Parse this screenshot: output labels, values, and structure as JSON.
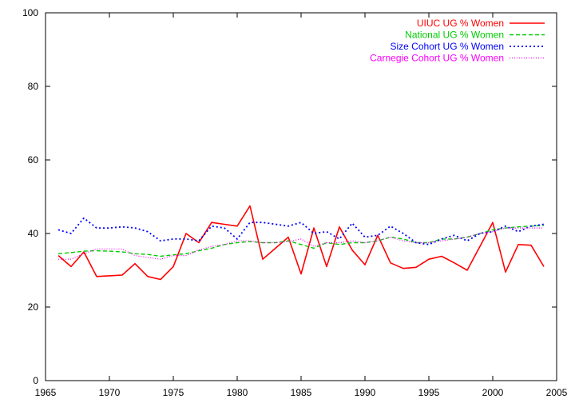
{
  "chart_data": {
    "type": "line",
    "xlim": [
      1965,
      2005
    ],
    "ylim": [
      0,
      100
    ],
    "xticks": [
      1965,
      1970,
      1975,
      1980,
      1985,
      1990,
      1995,
      2000,
      2005
    ],
    "yticks": [
      0,
      20,
      40,
      60,
      80,
      100
    ],
    "grid": false,
    "legend_position": "top-right",
    "x": [
      1966,
      1967,
      1968,
      1969,
      1970,
      1971,
      1972,
      1973,
      1974,
      1975,
      1976,
      1977,
      1978,
      1979,
      1980,
      1981,
      1982,
      1983,
      1984,
      1985,
      1986,
      1987,
      1988,
      1989,
      1990,
      1991,
      1992,
      1993,
      1994,
      1995,
      1996,
      1997,
      1998,
      1999,
      2000,
      2001,
      2002,
      2003,
      2004
    ],
    "series": [
      {
        "name": "UIUC UG % Women",
        "color": "#ff0000",
        "dash": "solid",
        "values": [
          34,
          31,
          35,
          28.3,
          28.5,
          28.7,
          31.8,
          28.3,
          27.5,
          31,
          40,
          37.5,
          43,
          42.5,
          42,
          47.5,
          33,
          36,
          39,
          29,
          41.5,
          31,
          41.8,
          35.5,
          31.5,
          39.5,
          32,
          30.5,
          30.8,
          33,
          33.8,
          32,
          30,
          36.5,
          43,
          29.5,
          37,
          36.8,
          31
        ]
      },
      {
        "name": "National UG % Women",
        "color": "#00cc00",
        "dash": "dashed",
        "values": [
          34.5,
          34.8,
          35.2,
          35.3,
          35.2,
          35,
          34.5,
          34.3,
          33.8,
          34.2,
          34.5,
          35.3,
          36,
          37,
          37.5,
          37.8,
          37.5,
          37.5,
          38,
          37,
          36,
          37.5,
          37,
          37.5,
          37.5,
          38,
          39,
          38.5,
          37.5,
          37.5,
          38.5,
          38.5,
          39,
          40,
          41,
          41.5,
          41.8,
          42,
          42.2
        ]
      },
      {
        "name": "Size Cohort UG % Women",
        "color": "#0000ff",
        "dash": "dotted",
        "values": [
          41,
          40,
          44.2,
          41.5,
          41.5,
          41.8,
          41.5,
          40.5,
          38,
          38.5,
          38.5,
          38,
          42,
          41.5,
          38.5,
          43,
          43,
          42.5,
          42,
          43,
          40,
          40.5,
          38.5,
          42.8,
          39,
          39.5,
          42,
          40,
          37.5,
          37,
          38.5,
          39.5,
          38,
          40,
          40.5,
          42,
          40.5,
          42,
          42.5
        ]
      },
      {
        "name": "Carnegie Cohort UG % Women",
        "color": "#ff00ff",
        "dash": "finedot",
        "values": [
          33,
          33,
          34.5,
          35.8,
          35.8,
          35.8,
          34,
          33.5,
          33,
          34,
          34,
          35.5,
          36.5,
          37,
          38,
          38,
          37.5,
          37.5,
          37.8,
          38.5,
          36.5,
          37.5,
          37.5,
          38,
          37.5,
          38,
          39,
          38,
          37.5,
          37.5,
          38,
          38.5,
          39,
          40,
          40.5,
          41.5,
          41.5,
          41.5,
          41.5
        ]
      }
    ]
  }
}
